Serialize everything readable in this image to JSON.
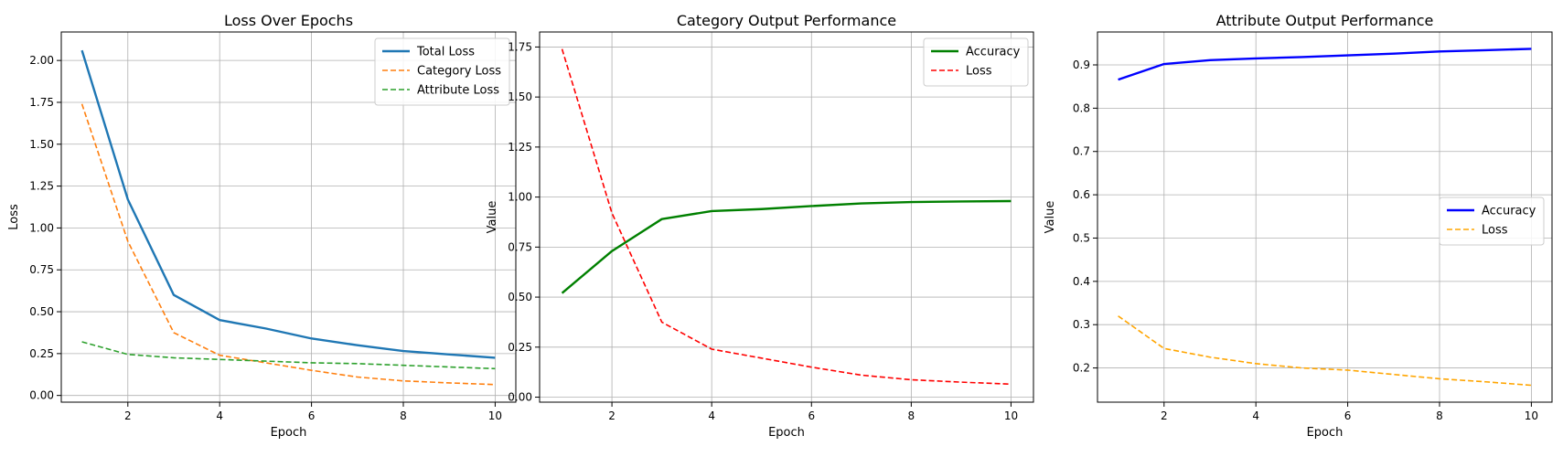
{
  "chart_data": [
    {
      "type": "line",
      "title": "Loss Over Epochs",
      "xlabel": "Epoch",
      "ylabel": "Loss",
      "x": [
        1,
        2,
        3,
        4,
        5,
        6,
        7,
        8,
        9,
        10
      ],
      "xlim": [
        0.55,
        10.45
      ],
      "ylim": [
        -0.04,
        2.17
      ],
      "xticks": [
        2,
        4,
        6,
        8,
        10
      ],
      "yticks": [
        0.0,
        0.25,
        0.5,
        0.75,
        1.0,
        1.25,
        1.5,
        1.75,
        2.0
      ],
      "ytick_labels": [
        "0.00",
        "0.25",
        "0.50",
        "0.75",
        "1.00",
        "1.25",
        "1.50",
        "1.75",
        "2.00"
      ],
      "grid": true,
      "legend": "top-right",
      "series": [
        {
          "name": "Total Loss",
          "color": "#1f77b4",
          "style": "solid",
          "values": [
            2.06,
            1.17,
            0.6,
            0.45,
            0.4,
            0.34,
            0.3,
            0.265,
            0.245,
            0.225
          ]
        },
        {
          "name": "Category Loss",
          "color": "#ff7f0e",
          "style": "dashed",
          "values": [
            1.74,
            0.92,
            0.375,
            0.24,
            0.195,
            0.15,
            0.11,
            0.087,
            0.075,
            0.065
          ]
        },
        {
          "name": "Attribute Loss",
          "color": "#2ca02c",
          "style": "dashed",
          "values": [
            0.32,
            0.245,
            0.225,
            0.215,
            0.205,
            0.195,
            0.19,
            0.18,
            0.17,
            0.16
          ]
        }
      ]
    },
    {
      "type": "line",
      "title": "Category Output Performance",
      "xlabel": "Epoch",
      "ylabel": "Value",
      "x": [
        1,
        2,
        3,
        4,
        5,
        6,
        7,
        8,
        9,
        10
      ],
      "xlim": [
        0.55,
        10.45
      ],
      "ylim": [
        -0.025,
        1.825
      ],
      "xticks": [
        2,
        4,
        6,
        8,
        10
      ],
      "yticks": [
        0.0,
        0.25,
        0.5,
        0.75,
        1.0,
        1.25,
        1.5,
        1.75
      ],
      "ytick_labels": [
        "0.00",
        "0.25",
        "0.50",
        "0.75",
        "1.00",
        "1.25",
        "1.50",
        "1.75"
      ],
      "grid": true,
      "legend": "top-right",
      "series": [
        {
          "name": "Accuracy",
          "color": "#008000",
          "style": "solid",
          "values": [
            0.52,
            0.73,
            0.89,
            0.93,
            0.94,
            0.955,
            0.968,
            0.975,
            0.978,
            0.98
          ]
        },
        {
          "name": "Loss",
          "color": "#ff0000",
          "style": "dashed",
          "values": [
            1.74,
            0.92,
            0.375,
            0.24,
            0.195,
            0.15,
            0.11,
            0.087,
            0.075,
            0.065
          ]
        }
      ]
    },
    {
      "type": "line",
      "title": "Attribute Output Performance",
      "xlabel": "Epoch",
      "ylabel": "Value",
      "x": [
        1,
        2,
        3,
        4,
        5,
        6,
        7,
        8,
        9,
        10
      ],
      "xlim": [
        0.55,
        10.45
      ],
      "ylim": [
        0.121,
        0.976
      ],
      "xticks": [
        2,
        4,
        6,
        8,
        10
      ],
      "yticks": [
        0.2,
        0.3,
        0.4,
        0.5,
        0.6,
        0.7,
        0.8,
        0.9
      ],
      "ytick_labels": [
        "0.2",
        "0.3",
        "0.4",
        "0.5",
        "0.6",
        "0.7",
        "0.8",
        "0.9"
      ],
      "grid": true,
      "legend": "center-right",
      "series": [
        {
          "name": "Accuracy",
          "color": "#0000ff",
          "style": "solid",
          "values": [
            0.866,
            0.902,
            0.911,
            0.915,
            0.918,
            0.922,
            0.926,
            0.931,
            0.934,
            0.937
          ]
        },
        {
          "name": "Loss",
          "color": "#ffa500",
          "style": "dashed",
          "values": [
            0.32,
            0.245,
            0.225,
            0.21,
            0.2,
            0.195,
            0.185,
            0.175,
            0.168,
            0.16
          ]
        }
      ]
    }
  ]
}
